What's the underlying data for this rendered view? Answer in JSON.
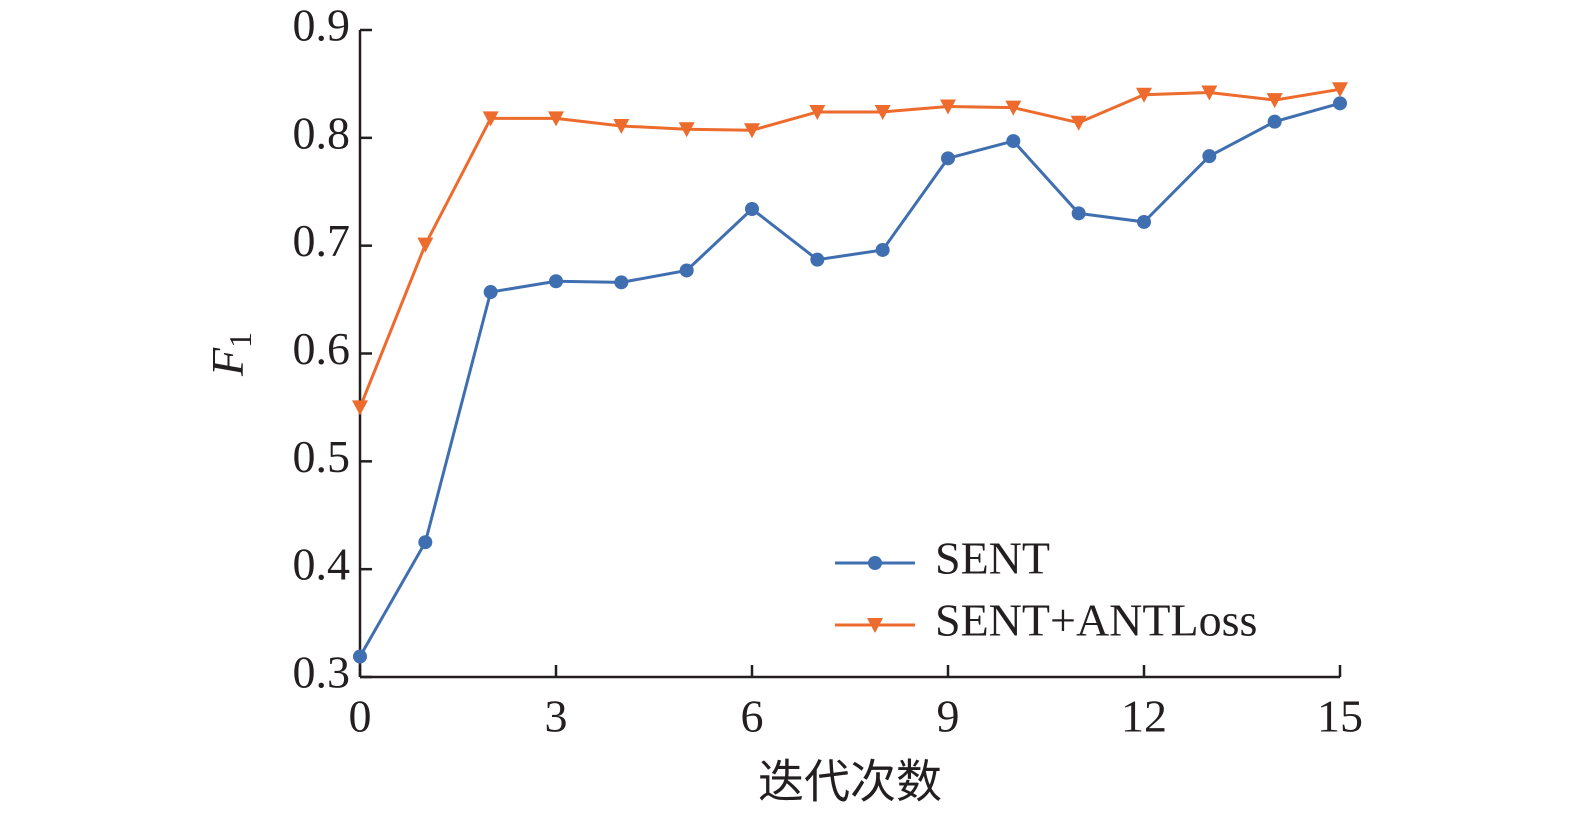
{
  "chart_data": {
    "type": "line",
    "x_label": "迭代次数",
    "y_label": "F",
    "y_label_subscript": "1",
    "x": [
      0,
      1,
      2,
      3,
      4,
      5,
      6,
      7,
      8,
      9,
      10,
      11,
      12,
      13,
      14,
      15
    ],
    "series": [
      {
        "name": "SENT",
        "color": "#3f6fb0",
        "marker": "circle",
        "values": [
          0.319,
          0.425,
          0.657,
          0.667,
          0.666,
          0.677,
          0.734,
          0.687,
          0.696,
          0.781,
          0.797,
          0.73,
          0.722,
          0.783,
          0.815,
          0.832
        ]
      },
      {
        "name": "SENT+ANTLoss",
        "color": "#ec6b2d",
        "marker": "triangle-down",
        "values": [
          0.55,
          0.701,
          0.818,
          0.818,
          0.811,
          0.808,
          0.807,
          0.824,
          0.824,
          0.829,
          0.828,
          0.814,
          0.84,
          0.842,
          0.835,
          0.845
        ]
      }
    ],
    "xlim": [
      0,
      15
    ],
    "xticks": [
      0,
      3,
      6,
      9,
      12,
      15
    ],
    "ylim": [
      0.3,
      0.9
    ],
    "yticks": [
      0.3,
      0.4,
      0.5,
      0.6,
      0.7,
      0.8,
      0.9
    ],
    "legend": "lower right",
    "grid": false
  }
}
